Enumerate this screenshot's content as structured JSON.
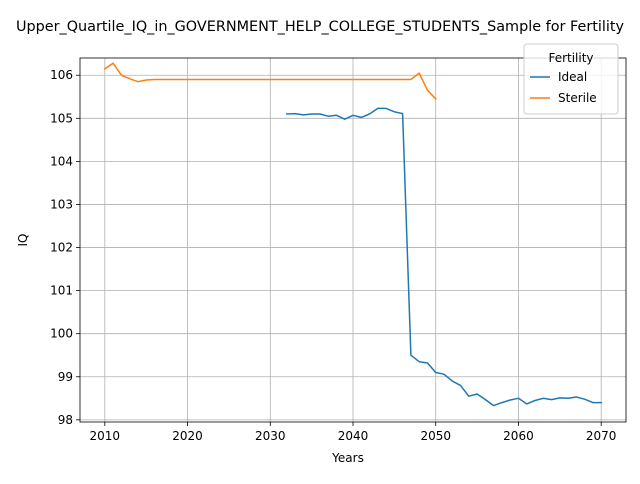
{
  "chart_data": {
    "type": "line",
    "title": "Upper_Quartile_IQ_in_GOVERNMENT_HELP_COLLEGE_STUDENTS_Sample for Fertility",
    "xlabel": "Years",
    "ylabel": "IQ",
    "xlim": [
      2007,
      2073
    ],
    "ylim": [
      97.95,
      106.4
    ],
    "xticks": [
      2010,
      2020,
      2030,
      2040,
      2050,
      2060,
      2070
    ],
    "yticks": [
      98,
      99,
      100,
      101,
      102,
      103,
      104,
      105,
      106
    ],
    "grid": true,
    "legend": {
      "title": "Fertility",
      "position": "top-right"
    },
    "series": [
      {
        "name": "Ideal",
        "color": "#1f77b4",
        "x": [
          2032,
          2033,
          2034,
          2035,
          2036,
          2037,
          2038,
          2039,
          2040,
          2041,
          2042,
          2043,
          2044,
          2045,
          2046,
          2047,
          2048,
          2049,
          2050,
          2051,
          2052,
          2053,
          2054,
          2055,
          2056,
          2057,
          2058,
          2059,
          2060,
          2061,
          2062,
          2063,
          2064,
          2065,
          2066,
          2067,
          2068,
          2069,
          2070
        ],
        "y": [
          105.1,
          105.11,
          105.08,
          105.1,
          105.1,
          105.05,
          105.07,
          104.98,
          105.07,
          105.02,
          105.1,
          105.23,
          105.23,
          105.15,
          105.11,
          99.5,
          99.35,
          99.32,
          99.1,
          99.06,
          98.9,
          98.8,
          98.55,
          98.6,
          98.47,
          98.33,
          98.4,
          98.46,
          98.5,
          98.37,
          98.45,
          98.5,
          98.47,
          98.51,
          98.5,
          98.53,
          98.48,
          98.4,
          98.4
        ]
      },
      {
        "name": "Sterile",
        "color": "#ff7f0e",
        "x": [
          2010,
          2011,
          2012,
          2013,
          2014,
          2015,
          2016,
          2017,
          2018,
          2019,
          2020,
          2021,
          2022,
          2023,
          2024,
          2025,
          2026,
          2027,
          2028,
          2029,
          2030,
          2031,
          2032,
          2033,
          2034,
          2035,
          2036,
          2037,
          2038,
          2039,
          2040,
          2041,
          2042,
          2043,
          2044,
          2045,
          2046,
          2047,
          2048,
          2049,
          2050
        ],
        "y": [
          106.15,
          106.28,
          106.0,
          105.92,
          105.85,
          105.89,
          105.9,
          105.9,
          105.9,
          105.9,
          105.9,
          105.9,
          105.9,
          105.9,
          105.9,
          105.9,
          105.9,
          105.9,
          105.9,
          105.9,
          105.9,
          105.9,
          105.9,
          105.9,
          105.9,
          105.9,
          105.9,
          105.9,
          105.9,
          105.9,
          105.9,
          105.9,
          105.9,
          105.9,
          105.9,
          105.9,
          105.9,
          105.9,
          106.05,
          105.65,
          105.45
        ]
      }
    ]
  }
}
